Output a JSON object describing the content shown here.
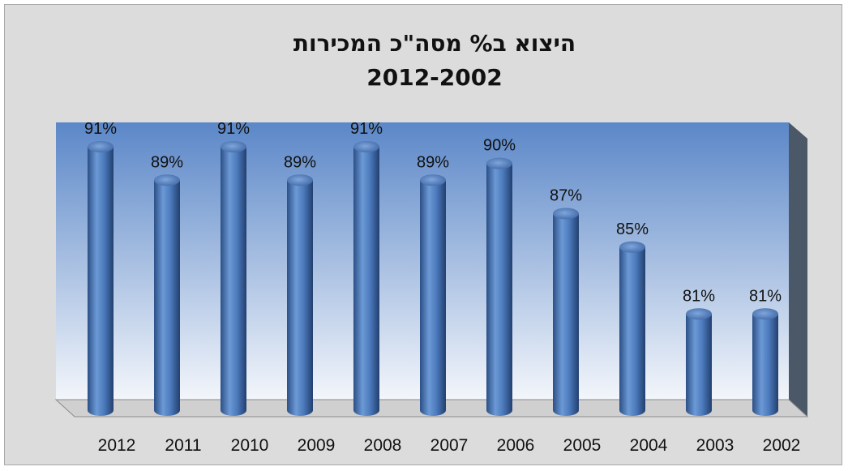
{
  "chart_data": {
    "type": "bar",
    "style": "3d-cylinder",
    "title": "היצוא ב% מסה\"כ המכירות",
    "subtitle": "2012-2002",
    "xlabel": "",
    "ylabel": "",
    "categories": [
      "2012",
      "2011",
      "2010",
      "2009",
      "2008",
      "2007",
      "2006",
      "2005",
      "2004",
      "2003",
      "2002"
    ],
    "values": [
      91,
      89,
      91,
      89,
      91,
      89,
      90,
      87,
      85,
      81,
      81
    ],
    "data_labels": [
      "91%",
      "89%",
      "91%",
      "89%",
      "91%",
      "89%",
      "90%",
      "87%",
      "85%",
      "81%",
      "81%"
    ],
    "ylim": [
      75,
      92
    ],
    "grid": false,
    "legend": "none",
    "colors": {
      "bar": "#4f81bd",
      "plot_top": "#5b87c8",
      "plot_bottom": "#f3f6fb",
      "frame_background": "#dcdcdc",
      "side_wall": "#4a5868"
    }
  }
}
